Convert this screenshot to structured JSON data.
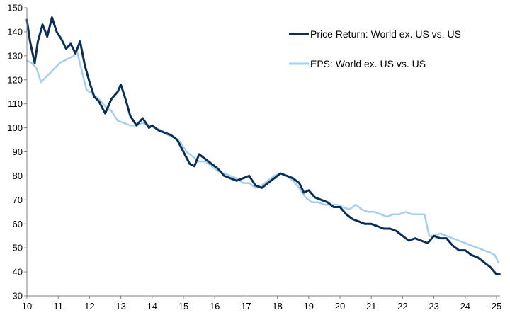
{
  "chart_data": {
    "type": "line",
    "title": "",
    "xlabel": "",
    "ylabel": "",
    "xlim": [
      2010,
      2025.2
    ],
    "ylim": [
      30,
      150
    ],
    "x_ticks": [
      2010,
      2011,
      2012,
      2013,
      2014,
      2015,
      2016,
      2017,
      2018,
      2019,
      2020,
      2021,
      2022,
      2023,
      2024,
      2025
    ],
    "x_tick_labels": [
      "10",
      "11",
      "12",
      "13",
      "14",
      "15",
      "16",
      "17",
      "18",
      "19",
      "20",
      "21",
      "22",
      "23",
      "24",
      "25"
    ],
    "y_ticks": [
      30,
      40,
      50,
      60,
      70,
      80,
      90,
      100,
      110,
      120,
      130,
      140,
      150
    ],
    "y_tick_labels": [
      "30",
      "40",
      "50",
      "60",
      "70",
      "80",
      "90",
      "100",
      "110",
      "120",
      "130",
      "140",
      "150"
    ],
    "grid": false,
    "legend_position": "top-right",
    "series": [
      {
        "name": "Price Return: World ex. US vs. US",
        "color": "#0b2f57",
        "x": [
          2010.0,
          2010.1,
          2010.25,
          2010.35,
          2010.5,
          2010.65,
          2010.8,
          2010.95,
          2011.1,
          2011.25,
          2011.4,
          2011.55,
          2011.7,
          2011.85,
          2012.0,
          2012.15,
          2012.3,
          2012.5,
          2012.7,
          2012.9,
          2013.0,
          2013.15,
          2013.3,
          2013.5,
          2013.7,
          2013.9,
          2014.0,
          2014.2,
          2014.4,
          2014.6,
          2014.8,
          2015.0,
          2015.2,
          2015.35,
          2015.5,
          2015.7,
          2015.9,
          2016.1,
          2016.3,
          2016.5,
          2016.7,
          2016.9,
          2017.1,
          2017.3,
          2017.5,
          2017.7,
          2017.9,
          2018.1,
          2018.3,
          2018.5,
          2018.7,
          2018.85,
          2019.0,
          2019.2,
          2019.4,
          2019.6,
          2019.8,
          2020.0,
          2020.2,
          2020.4,
          2020.6,
          2020.8,
          2021.0,
          2021.2,
          2021.4,
          2021.6,
          2021.8,
          2022.0,
          2022.2,
          2022.4,
          2022.6,
          2022.8,
          2023.0,
          2023.2,
          2023.4,
          2023.6,
          2023.8,
          2024.0,
          2024.2,
          2024.4,
          2024.6,
          2024.8,
          2025.0,
          2025.1
        ],
        "y": [
          145,
          136,
          127,
          136,
          143,
          138,
          146,
          140,
          137,
          133,
          135,
          131,
          136,
          126,
          119,
          113,
          111,
          106,
          112,
          115,
          118,
          112,
          105,
          101,
          104,
          100,
          101,
          99,
          98,
          97,
          95,
          90,
          85,
          84,
          89,
          87,
          85,
          83,
          80,
          79,
          78,
          79,
          80,
          76,
          75,
          77,
          79,
          81,
          80,
          79,
          77,
          73,
          74,
          71,
          70,
          69,
          67,
          67,
          64,
          62,
          61,
          60,
          60,
          59,
          58,
          58,
          57,
          55,
          53,
          54,
          53,
          52,
          55,
          54,
          54,
          51,
          49,
          49,
          47,
          46,
          44,
          42,
          39,
          39
        ]
      },
      {
        "name": "EPS: World ex. US vs. US",
        "color": "#a6cfea",
        "x": [
          2010.0,
          2010.15,
          2010.3,
          2010.45,
          2010.6,
          2010.75,
          2010.9,
          2011.05,
          2011.2,
          2011.35,
          2011.5,
          2011.6,
          2011.75,
          2011.9,
          2012.1,
          2012.3,
          2012.5,
          2012.7,
          2012.9,
          2013.1,
          2013.3,
          2013.5,
          2013.7,
          2013.9,
          2014.1,
          2014.3,
          2014.5,
          2014.7,
          2014.9,
          2015.1,
          2015.3,
          2015.5,
          2015.7,
          2015.9,
          2016.1,
          2016.3,
          2016.5,
          2016.7,
          2016.9,
          2017.1,
          2017.3,
          2017.5,
          2017.7,
          2017.9,
          2018.1,
          2018.3,
          2018.5,
          2018.7,
          2018.9,
          2019.1,
          2019.3,
          2019.5,
          2019.7,
          2019.9,
          2020.1,
          2020.3,
          2020.5,
          2020.7,
          2020.9,
          2021.1,
          2021.3,
          2021.5,
          2021.7,
          2021.9,
          2022.1,
          2022.3,
          2022.5,
          2022.7,
          2022.85,
          2023.0,
          2023.2,
          2023.4,
          2023.6,
          2023.8,
          2024.0,
          2024.2,
          2024.4,
          2024.6,
          2024.8,
          2024.95,
          2025.05
        ],
        "y": [
          128,
          127,
          125,
          119,
          121,
          123,
          125,
          127,
          128,
          129,
          130,
          132,
          124,
          116,
          114,
          112,
          109,
          107,
          103,
          102,
          101,
          101,
          102,
          101,
          100,
          99,
          97,
          96,
          94,
          90,
          88,
          86,
          86,
          84,
          82,
          81,
          80,
          79,
          77,
          77,
          75,
          76,
          78,
          80,
          81,
          80,
          78,
          75,
          71,
          69,
          69,
          68,
          68,
          68,
          67,
          66,
          68,
          66,
          65,
          65,
          64,
          63,
          64,
          64,
          65,
          64,
          64,
          64,
          55,
          55,
          56,
          55,
          54,
          53,
          52,
          51,
          50,
          49,
          48,
          47,
          44
        ]
      }
    ]
  }
}
